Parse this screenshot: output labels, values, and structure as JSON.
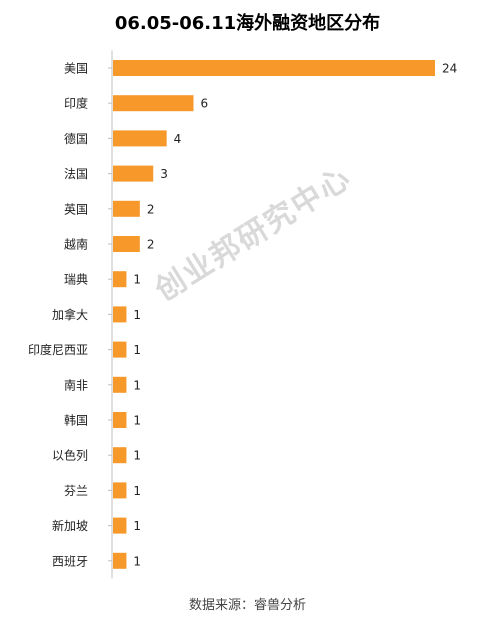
{
  "title": "06.05-06.11海外融资地区分布",
  "watermark": "创业邦研究中心",
  "source": "数据来源：睿兽分析",
  "colors": {
    "bar": "#F7992A",
    "axis": "#BFBFBF",
    "text": "#222222"
  },
  "chart_data": {
    "type": "bar",
    "orientation": "horizontal",
    "title": "06.05-06.11海外融资地区分布",
    "categories": [
      "美国",
      "印度",
      "德国",
      "法国",
      "英国",
      "越南",
      "瑞典",
      "加拿大",
      "印度尼西亚",
      "南非",
      "韩国",
      "以色列",
      "芬兰",
      "新加坡",
      "西班牙"
    ],
    "values": [
      24,
      6,
      4,
      3,
      2,
      2,
      1,
      1,
      1,
      1,
      1,
      1,
      1,
      1,
      1
    ],
    "xlim": [
      0,
      24
    ],
    "grid": false,
    "legend": false
  }
}
